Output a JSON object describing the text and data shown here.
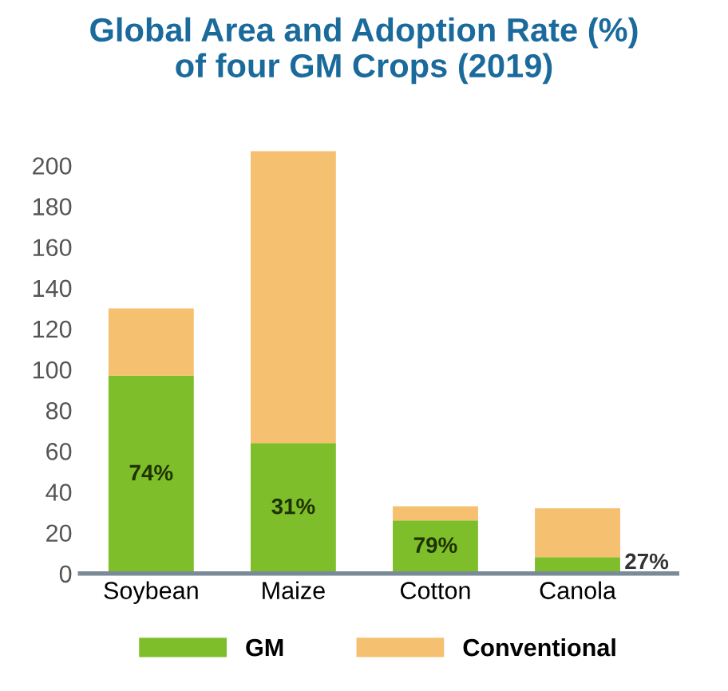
{
  "chart_data": {
    "type": "bar",
    "title": "Global Area and Adoption Rate (%)\nof four GM Crops (2019)",
    "categories": [
      "Soybean",
      "Maize",
      "Cotton",
      "Canola"
    ],
    "stacked": true,
    "series": [
      {
        "name": "GM",
        "color": "#7dbe2a",
        "values": [
          97,
          64,
          26,
          8
        ]
      },
      {
        "name": "Conventional",
        "color": "#f5c06f",
        "values": [
          33,
          143,
          7,
          24
        ]
      }
    ],
    "ylim": [
      0,
      210
    ],
    "yticks": [
      0,
      20,
      40,
      60,
      80,
      100,
      120,
      140,
      160,
      180,
      200
    ],
    "grid": false,
    "legend": "bottom",
    "annotations": [
      "74%",
      "31%",
      "79%",
      "27%"
    ]
  }
}
